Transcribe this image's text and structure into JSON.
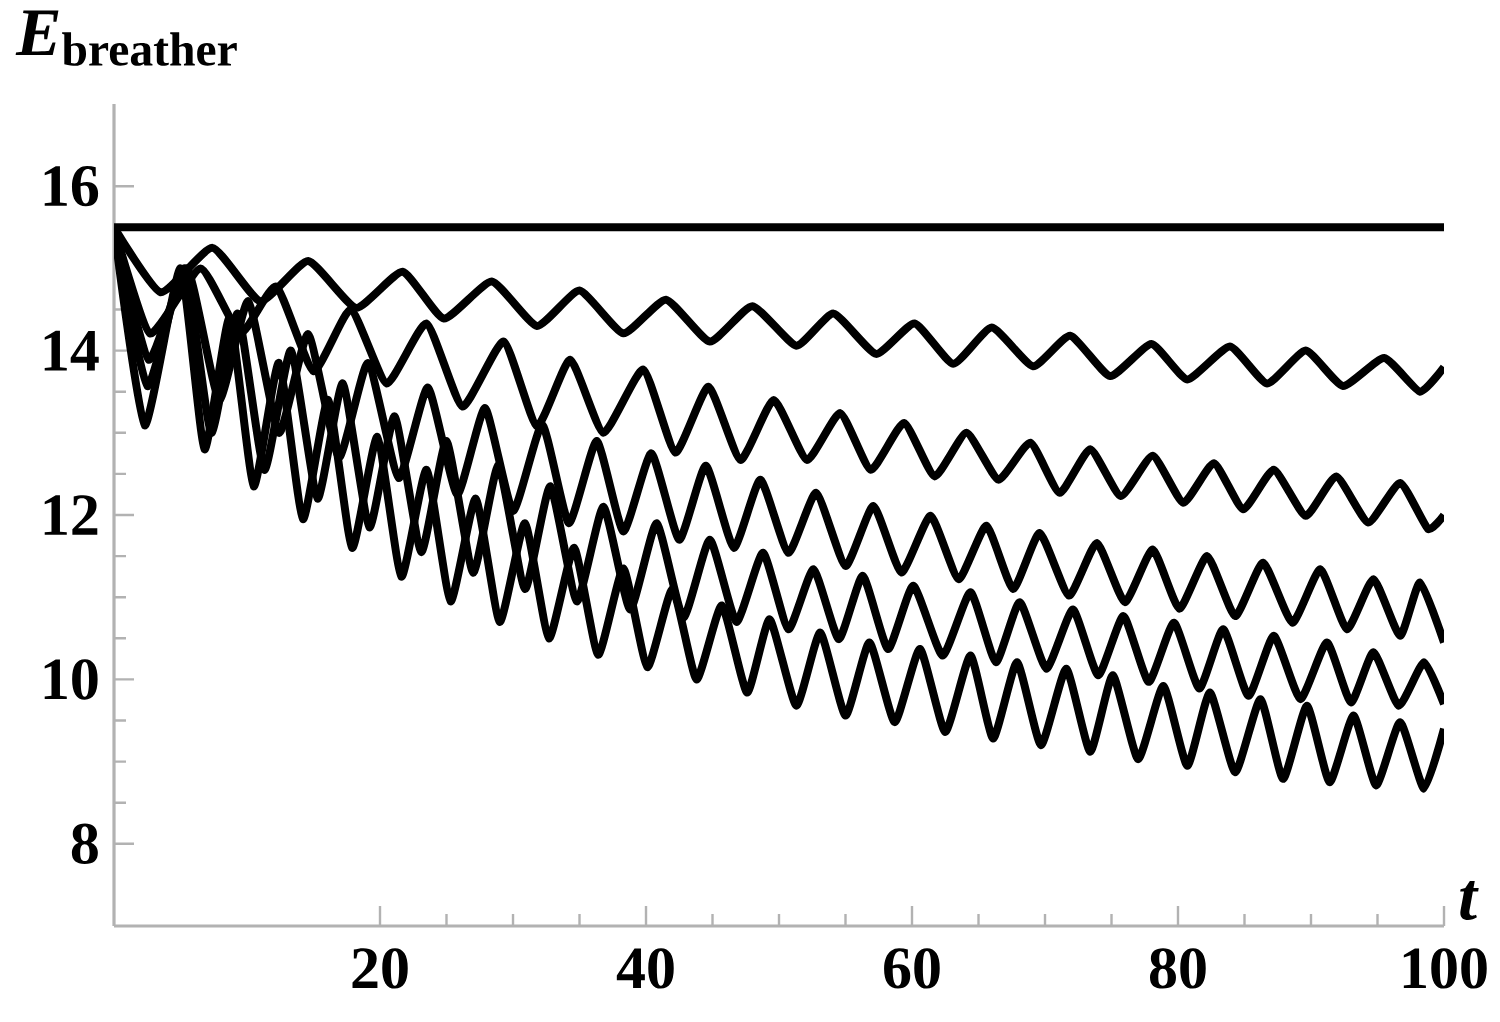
{
  "chart_data": {
    "type": "line",
    "xlabel": "t",
    "ylabel": "*E*$_{breather}$",
    "xlim": [
      0,
      100
    ],
    "ylim": [
      7,
      17
    ],
    "xticks": [
      20,
      40,
      60,
      80,
      100
    ],
    "yticks": [
      8,
      10,
      12,
      14,
      16
    ],
    "grid": false,
    "marker": "none",
    "line_style": "solid",
    "series": [
      {
        "color": "#000000",
        "x": [
          0,
          100
        ],
        "values": [
          15.5,
          15.5
        ]
      },
      {
        "color": "#000000",
        "x": [
          0,
          3.5,
          7.4,
          11,
          14.6,
          18.2,
          21.7,
          24.8,
          28.4,
          31.8,
          35,
          38.3,
          41.5,
          44.8,
          48,
          51.3,
          54.1,
          57.3,
          60.2,
          63.1,
          66,
          69.1,
          71.9,
          74.9,
          78,
          80.7,
          83.9,
          86.7,
          89.6,
          92.4,
          95.5,
          98.2,
          100
        ],
        "values": [
          15.5,
          14.71,
          15.25,
          14.6,
          15.09,
          14.52,
          14.96,
          14.39,
          14.84,
          14.3,
          14.73,
          14.21,
          14.62,
          14.11,
          14.54,
          14.06,
          14.45,
          13.96,
          14.33,
          13.84,
          14.28,
          13.81,
          14.18,
          13.69,
          14.08,
          13.65,
          14.05,
          13.6,
          14.0,
          13.57,
          13.91,
          13.5,
          13.8
        ]
      },
      {
        "color": "#000000",
        "x": [
          0,
          2.7,
          6.5,
          9.5,
          12.2,
          15,
          17.8,
          20.5,
          23.5,
          26.2,
          29.3,
          31.8,
          34.3,
          36.8,
          39.8,
          42.2,
          44.7,
          47.1,
          49.6,
          52.1,
          54.6,
          56.9,
          59.4,
          61.7,
          64.1,
          66.5,
          68.9,
          71.1,
          73.4,
          75.7,
          78.1,
          80.4,
          82.7,
          84.9,
          87.2,
          89.6,
          91.9,
          94.3,
          96.7,
          98.8,
          100
        ],
        "values": [
          15.5,
          14.21,
          15.0,
          14.21,
          14.78,
          13.75,
          14.5,
          13.6,
          14.33,
          13.32,
          14.11,
          13.08,
          13.89,
          13.0,
          13.77,
          12.76,
          13.56,
          12.67,
          13.4,
          12.67,
          13.24,
          12.55,
          13.12,
          12.47,
          13.0,
          12.43,
          12.88,
          12.27,
          12.8,
          12.23,
          12.72,
          12.15,
          12.63,
          12.07,
          12.55,
          11.99,
          12.47,
          11.91,
          12.39,
          11.83,
          12.0
        ]
      },
      {
        "color": "#000000",
        "x": [
          0,
          2.6,
          5.5,
          7.9,
          10.1,
          12.4,
          14.6,
          16.9,
          19.1,
          21.4,
          23.6,
          25.8,
          27.9,
          30,
          32.2,
          34.2,
          36.3,
          38.3,
          40.4,
          42.5,
          44.5,
          46.6,
          48.6,
          50.7,
          52.8,
          55,
          57.1,
          59.2,
          61.4,
          63.5,
          65.6,
          67.6,
          69.6,
          71.8,
          73.9,
          76,
          78.1,
          80.1,
          82.2,
          84.3,
          86.4,
          88.6,
          90.7,
          92.7,
          94.7,
          96.7,
          98.2,
          100
        ],
        "values": [
          15.5,
          13.89,
          15.0,
          13.4,
          14.6,
          13.0,
          14.2,
          12.7,
          13.85,
          12.45,
          13.55,
          12.25,
          13.3,
          12.05,
          13.1,
          11.9,
          12.9,
          11.8,
          12.75,
          11.7,
          12.6,
          11.6,
          12.43,
          11.54,
          12.27,
          11.38,
          12.11,
          11.3,
          11.99,
          11.22,
          11.87,
          11.1,
          11.78,
          11.02,
          11.66,
          10.94,
          11.58,
          10.86,
          11.5,
          10.77,
          11.42,
          10.69,
          11.34,
          10.61,
          11.22,
          10.53,
          11.18,
          10.45
        ]
      },
      {
        "color": "#000000",
        "x": [
          0,
          2.5,
          5.3,
          7.3,
          9.3,
          11.3,
          13.3,
          15.3,
          17.2,
          19.2,
          21.1,
          23.1,
          25,
          27,
          28.9,
          30.9,
          32.8,
          34.8,
          36.8,
          38.8,
          40.8,
          42.8,
          44.8,
          46.8,
          48.8,
          50.7,
          52.6,
          54.5,
          56.3,
          58.2,
          60.1,
          62.3,
          64.4,
          66.3,
          68.1,
          70.1,
          72.1,
          74,
          75.9,
          77.8,
          79.7,
          81.6,
          83.4,
          85.3,
          87.2,
          89.2,
          91.2,
          93,
          94.7,
          96.6,
          98.5,
          100
        ],
        "values": [
          15.5,
          13.57,
          15.0,
          13.0,
          14.45,
          12.55,
          14.0,
          12.2,
          13.6,
          11.85,
          13.2,
          11.55,
          12.9,
          11.3,
          12.6,
          11.1,
          12.35,
          10.95,
          12.1,
          10.85,
          11.9,
          10.75,
          11.7,
          10.7,
          11.54,
          10.61,
          11.34,
          10.49,
          11.26,
          10.37,
          11.14,
          10.29,
          11.06,
          10.21,
          10.94,
          10.13,
          10.85,
          10.05,
          10.77,
          9.97,
          10.69,
          9.89,
          10.61,
          9.8,
          10.53,
          9.76,
          10.45,
          9.72,
          10.33,
          9.68,
          10.21,
          9.7
        ]
      },
      {
        "color": "#000000",
        "x": [
          0,
          2.3,
          5.0,
          6.8,
          8.7,
          10.5,
          12.4,
          14.2,
          16.1,
          17.9,
          19.8,
          21.6,
          23.5,
          25.3,
          27.2,
          29,
          30.9,
          32.7,
          34.6,
          36.4,
          38.3,
          40.1,
          42,
          43.8,
          45.7,
          47.6,
          49.3,
          51.3,
          53.1,
          55,
          56.8,
          58.7,
          60.6,
          62.5,
          64.4,
          66.1,
          67.9,
          69.7,
          71.6,
          73.4,
          75.1,
          77,
          78.9,
          80.7,
          82.4,
          84.3,
          86.2,
          87.9,
          89.7,
          91.4,
          93.2,
          94.9,
          96.7,
          98.5,
          100
        ],
        "values": [
          15.5,
          13.09,
          15.0,
          12.8,
          14.4,
          12.35,
          13.85,
          11.95,
          13.4,
          11.6,
          12.95,
          11.25,
          12.55,
          10.95,
          12.2,
          10.7,
          11.9,
          10.5,
          11.6,
          10.3,
          11.35,
          10.15,
          11.1,
          10.0,
          10.9,
          9.84,
          10.73,
          9.68,
          10.57,
          9.56,
          10.45,
          9.48,
          10.37,
          9.36,
          10.29,
          9.28,
          10.21,
          9.2,
          10.13,
          9.12,
          10.05,
          9.03,
          9.92,
          8.95,
          9.84,
          8.87,
          9.76,
          8.79,
          9.68,
          8.75,
          9.56,
          8.71,
          9.48,
          8.67,
          9.4
        ]
      }
    ]
  }
}
